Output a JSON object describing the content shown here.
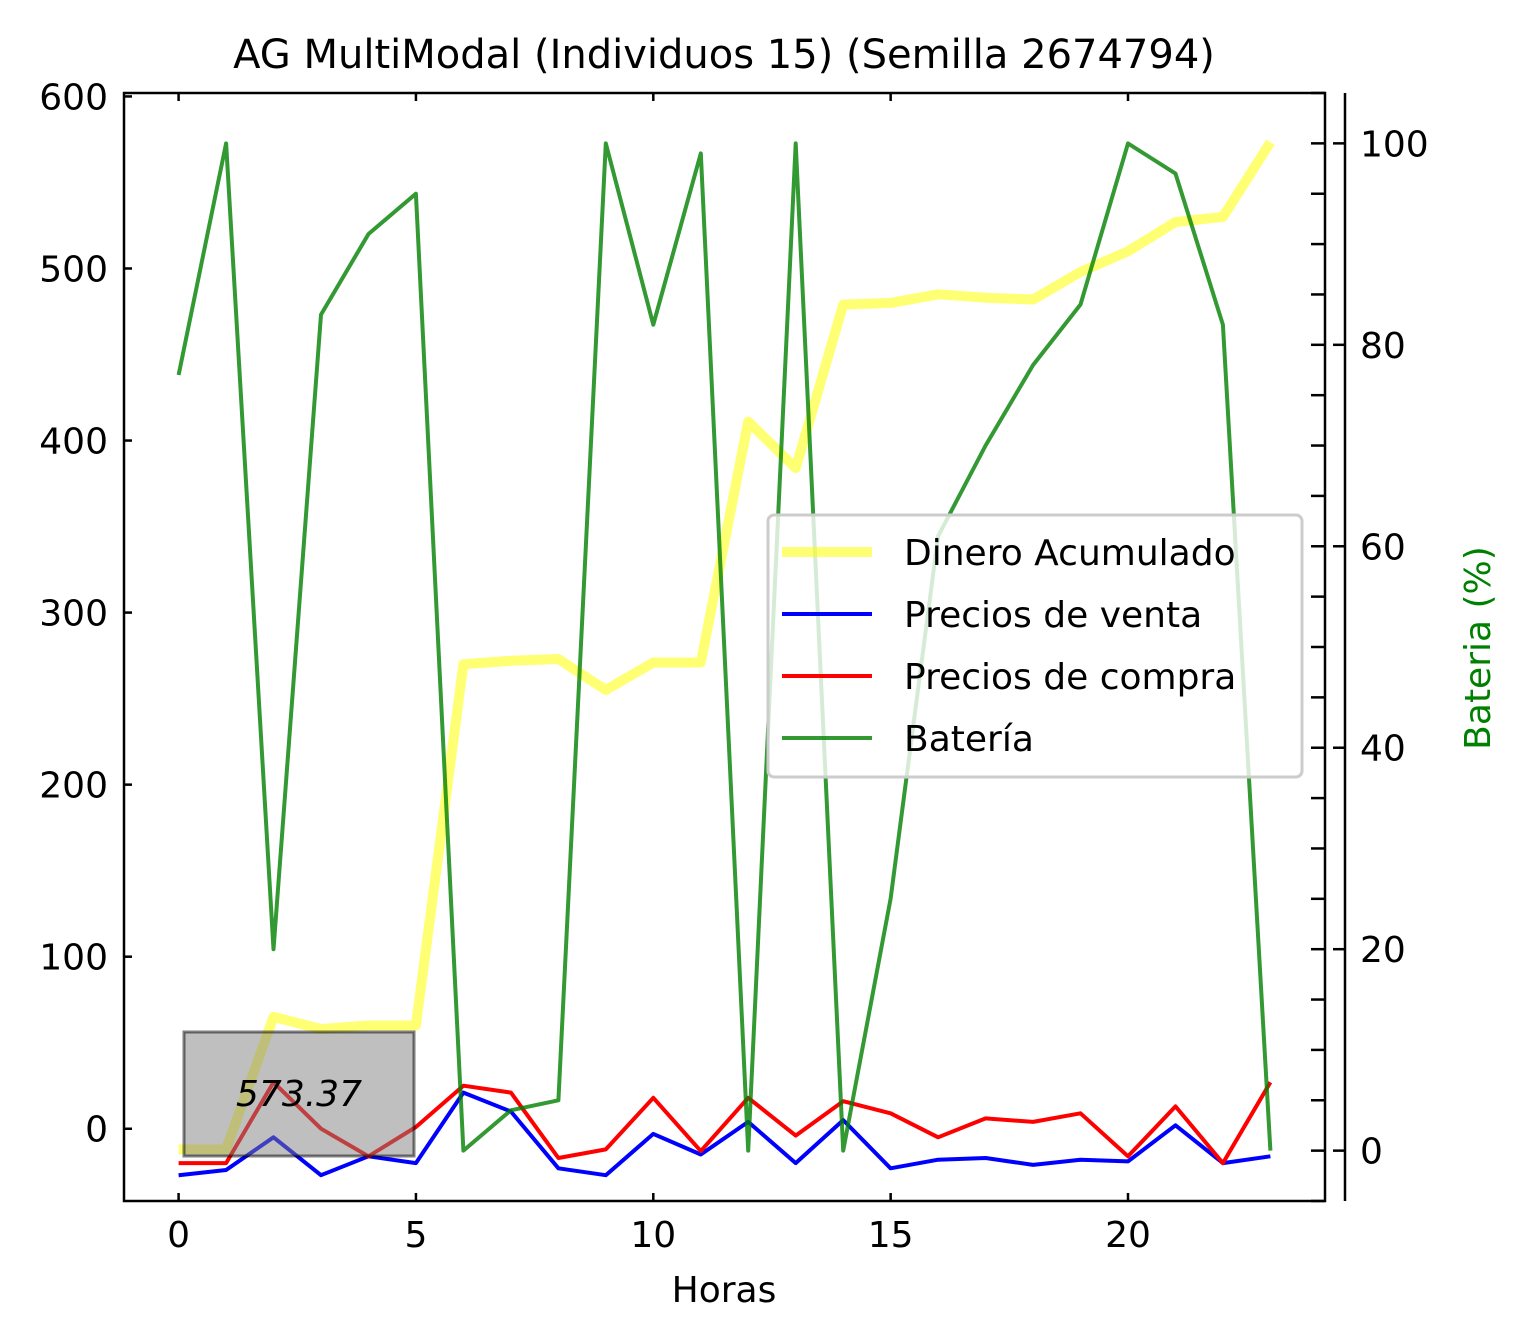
{
  "chart_data": {
    "type": "line",
    "title": "AG MultiModal (Individuos 15) (Semilla 2674794)",
    "xlabel": "Horas",
    "ylabel": "",
    "y2label": "Bateria (%)",
    "xlim": [
      -1.15,
      24.15
    ],
    "ylim": [
      -42,
      602
    ],
    "y2lim": [
      -5,
      105
    ],
    "x_ticks": [
      0,
      5,
      10,
      15,
      20
    ],
    "y_ticks": [
      0,
      100,
      200,
      300,
      400,
      500,
      600
    ],
    "y2_ticks": [
      0,
      20,
      40,
      60,
      80,
      100
    ],
    "grid": false,
    "legend_position": "center-right",
    "x": [
      0,
      1,
      2,
      3,
      4,
      5,
      6,
      7,
      8,
      9,
      10,
      11,
      12,
      13,
      14,
      15,
      16,
      17,
      18,
      19,
      20,
      21,
      22,
      23
    ],
    "series": [
      {
        "name": "Dinero Acumulado",
        "axis": "left",
        "color": "#ffff00",
        "opacity": 0.55,
        "width": 10,
        "values": [
          -12,
          -12,
          65,
          58,
          60,
          60,
          270,
          272,
          273,
          255,
          271,
          271,
          411,
          384,
          479,
          480,
          485,
          483,
          482,
          498,
          510,
          527,
          530,
          573.37
        ]
      },
      {
        "name": "Precios de venta",
        "axis": "left",
        "color": "#0000ff",
        "opacity": 1,
        "width": 4,
        "values": [
          -27,
          -24,
          -5,
          -27,
          -16,
          -20,
          21,
          10,
          -23,
          -27,
          -3,
          -15,
          4,
          -20,
          5,
          -23,
          -18,
          -17,
          -21,
          -18,
          -19,
          2,
          -20,
          -16
        ]
      },
      {
        "name": "Precios de compra",
        "axis": "left",
        "color": "#ff0000",
        "opacity": 1,
        "width": 4,
        "values": [
          -20,
          -20,
          27,
          0,
          -16,
          1,
          25,
          21,
          -17,
          -12,
          18,
          -13,
          18,
          -4,
          16,
          9,
          -5,
          6,
          4,
          9,
          -16,
          13,
          -20,
          27
        ]
      },
      {
        "name": "Batería",
        "axis": "right",
        "color": "#008000",
        "opacity": 0.8,
        "width": 4,
        "values": [
          77,
          100,
          20,
          83,
          91,
          95,
          0,
          4,
          5,
          100,
          82,
          99,
          0,
          100,
          0,
          25,
          61,
          70,
          78,
          84,
          100,
          97,
          82,
          0
        ]
      }
    ],
    "annotation": {
      "text": "573.37"
    }
  }
}
